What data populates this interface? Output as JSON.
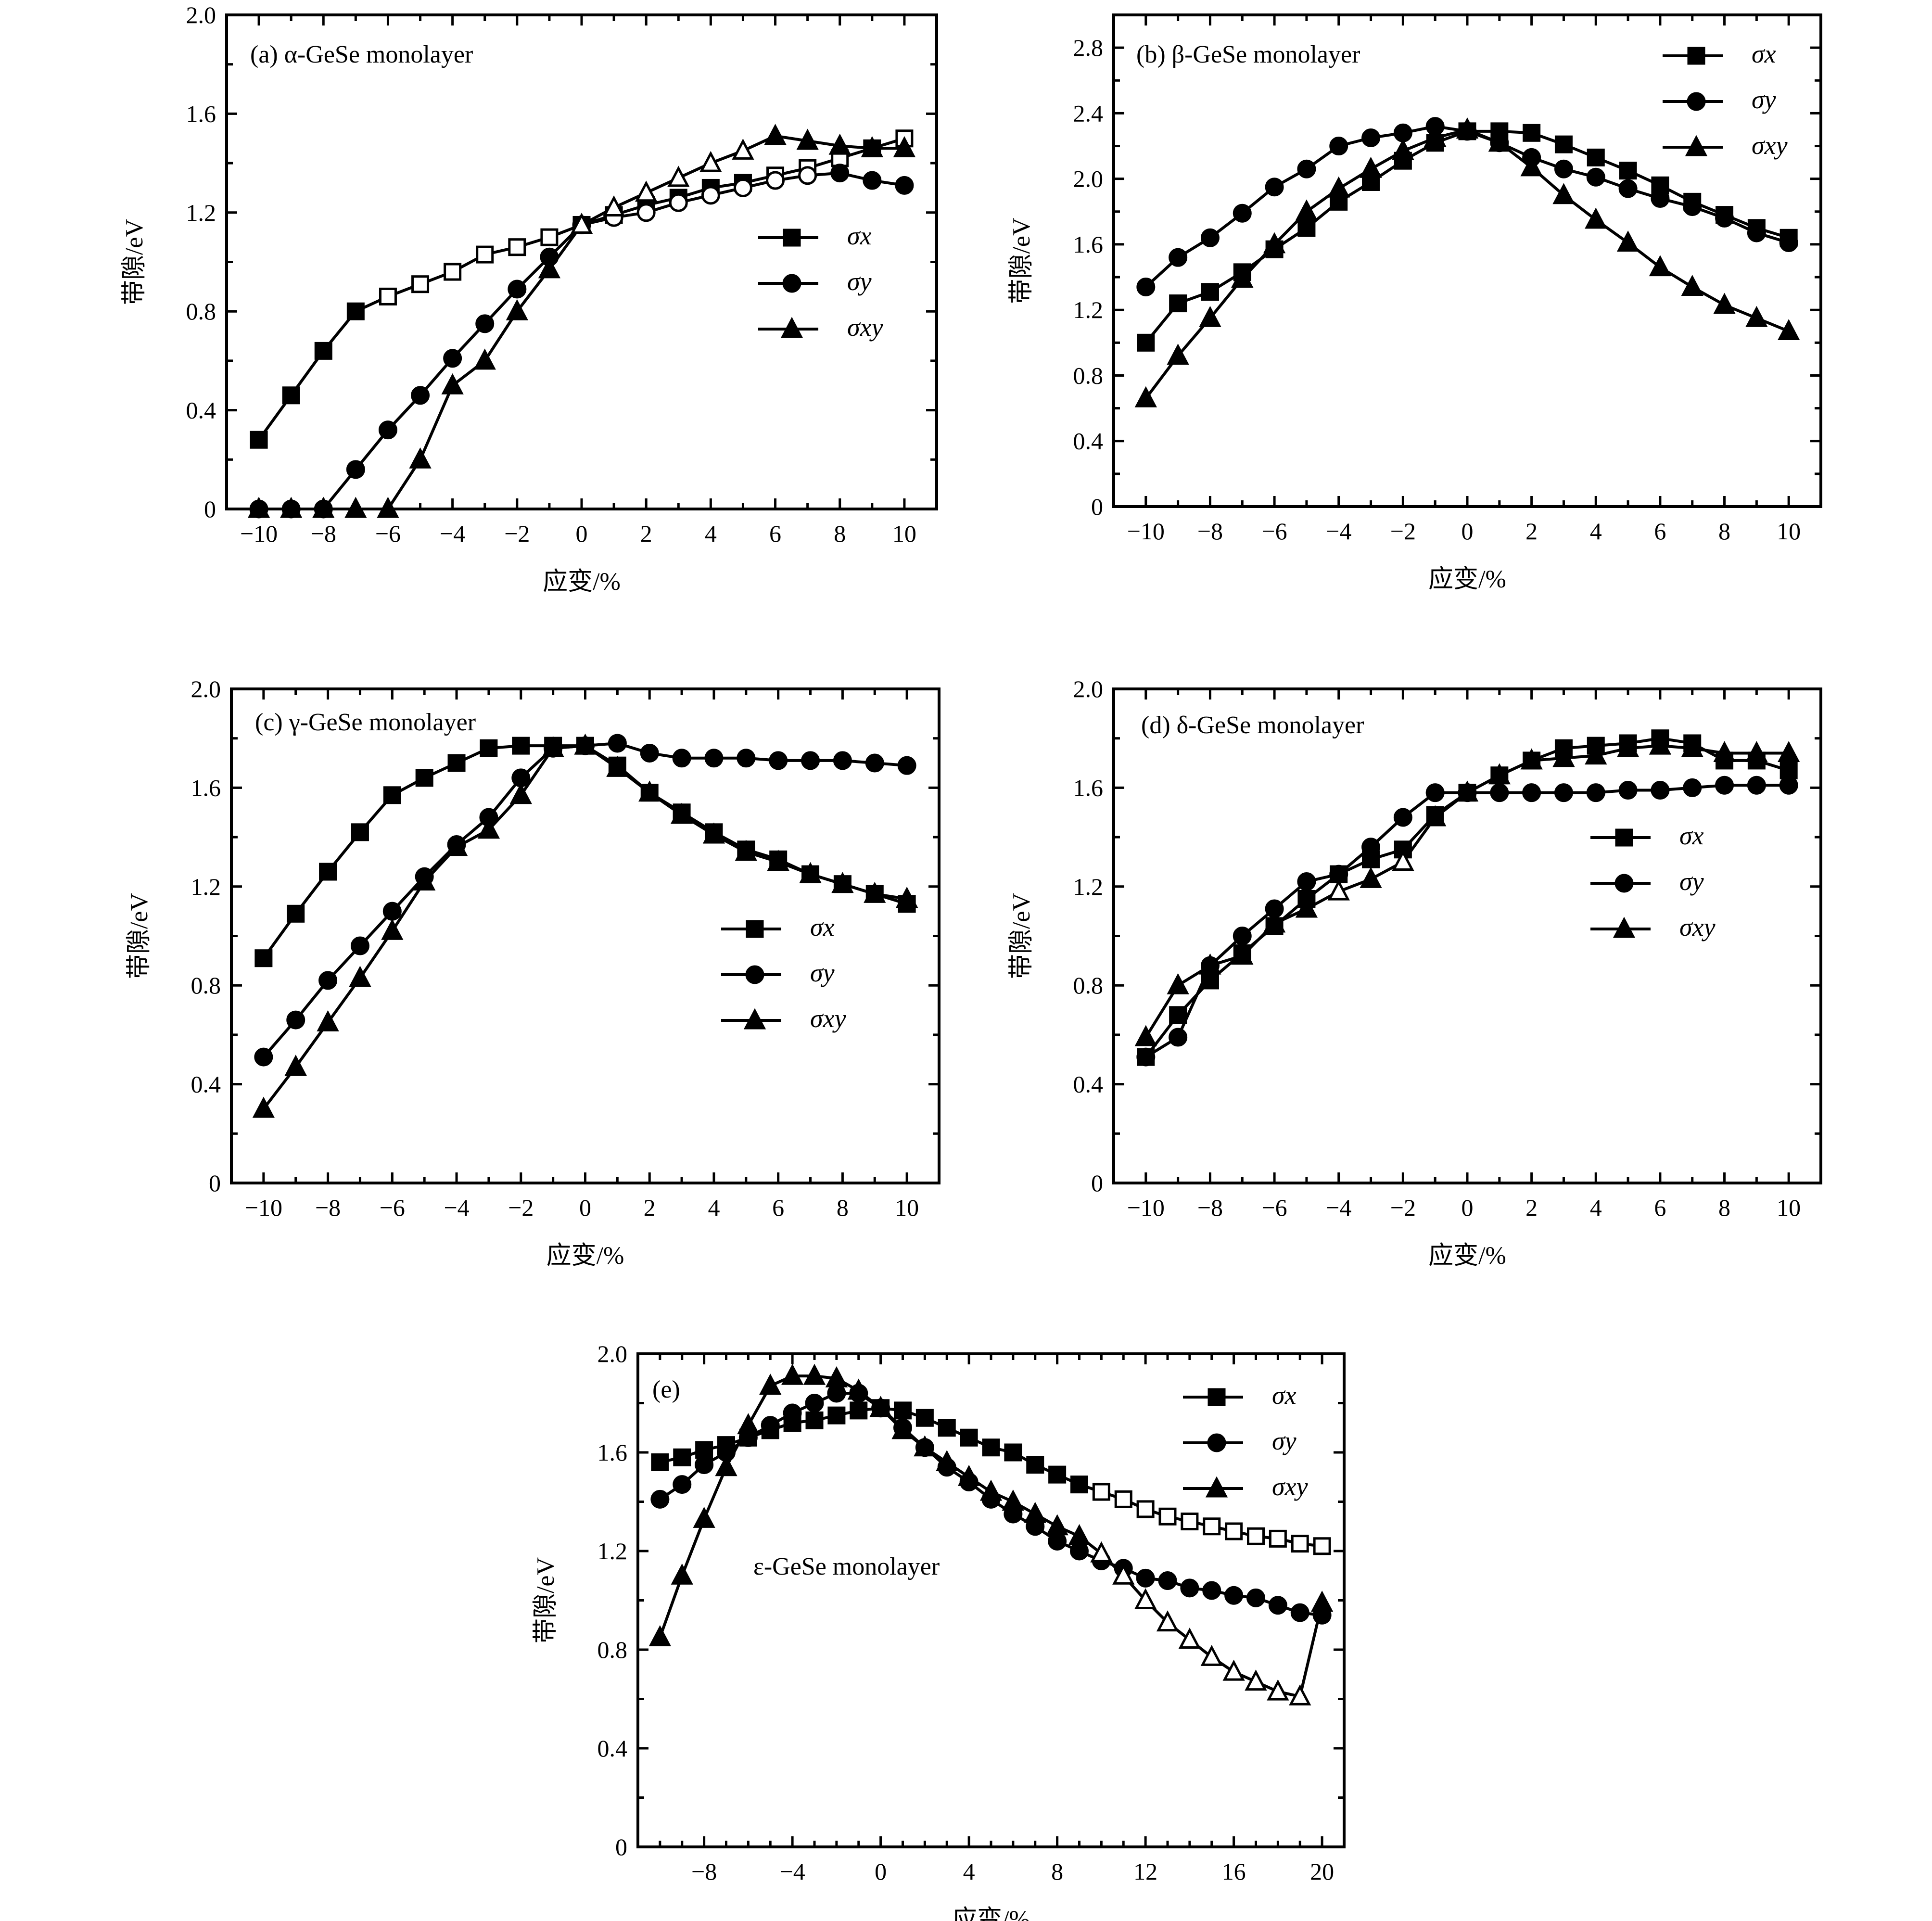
{
  "chart_data": [
    {
      "type": "line",
      "title": "(a) α-GeSe monolayer",
      "xlabel": "应变/%",
      "ylabel": "带隙/eV",
      "xlim": [
        -11,
        11
      ],
      "ylim": [
        0,
        2.0
      ],
      "xticks": [
        -10,
        -8,
        -6,
        -4,
        -2,
        0,
        2,
        4,
        6,
        8,
        10
      ],
      "xtick_labels": [
        "−10",
        "−8",
        "−6",
        "−4",
        "−2",
        "0",
        "2",
        "4",
        "6",
        "8",
        "10"
      ],
      "yticks": [
        0,
        0.4,
        0.8,
        1.2,
        1.6,
        2.0
      ],
      "ytick_labels": [
        "0",
        "0.4",
        "0.8",
        "1.2",
        "1.6",
        "2.0"
      ],
      "legend_position": "right",
      "grid": false,
      "x": [
        -10,
        -9,
        -8,
        -7,
        -6,
        -5,
        -4,
        -3,
        -2,
        -1,
        0,
        1,
        2,
        3,
        4,
        5,
        6,
        7,
        8,
        9,
        10
      ],
      "series": [
        {
          "name": "σx",
          "marker": "square",
          "values": [
            0.28,
            0.46,
            0.64,
            0.8,
            0.86,
            0.91,
            0.96,
            1.03,
            1.06,
            1.1,
            1.15,
            1.19,
            1.23,
            1.26,
            1.3,
            1.32,
            1.35,
            1.38,
            1.42,
            1.46,
            1.5
          ],
          "hollow_x": [
            -6,
            -5,
            -4,
            -3,
            -2,
            -1,
            6,
            7,
            8,
            10
          ]
        },
        {
          "name": "σy",
          "marker": "circle",
          "values": [
            0,
            0,
            0,
            0.16,
            0.32,
            0.46,
            0.61,
            0.75,
            0.89,
            1.02,
            1.15,
            1.18,
            1.2,
            1.24,
            1.27,
            1.3,
            1.33,
            1.35,
            1.36,
            1.33,
            1.31
          ],
          "hollow_x": [
            1,
            2,
            3,
            4,
            5,
            6,
            7
          ]
        },
        {
          "name": "σxy",
          "marker": "triangle",
          "values": [
            0,
            0,
            0,
            0,
            0,
            0.2,
            0.5,
            0.6,
            0.8,
            0.97,
            1.15,
            1.22,
            1.28,
            1.34,
            1.4,
            1.45,
            1.51,
            1.49,
            1.47,
            1.46,
            1.46
          ],
          "hollow_x": [
            0,
            1,
            2,
            3,
            4,
            5
          ]
        }
      ]
    },
    {
      "type": "line",
      "title": "(b) β-GeSe monolayer",
      "xlabel": "应变/%",
      "ylabel": "带隙/eV",
      "xlim": [
        -11,
        11
      ],
      "ylim": [
        0,
        3.0
      ],
      "xticks": [
        -10,
        -8,
        -6,
        -4,
        -2,
        0,
        2,
        4,
        6,
        8,
        10
      ],
      "xtick_labels": [
        "−10",
        "−8",
        "−6",
        "−4",
        "−2",
        "0",
        "2",
        "4",
        "6",
        "8",
        "10"
      ],
      "yticks": [
        0,
        0.4,
        0.8,
        1.2,
        1.6,
        2.0,
        2.4,
        2.8
      ],
      "ytick_labels": [
        "0",
        "0.4",
        "0.8",
        "1.2",
        "1.6",
        "2.0",
        "2.4",
        "2.8"
      ],
      "legend_position": "top-right",
      "grid": false,
      "x": [
        -10,
        -9,
        -8,
        -7,
        -6,
        -5,
        -4,
        -3,
        -2,
        -1,
        0,
        1,
        2,
        3,
        4,
        5,
        6,
        7,
        8,
        9,
        10
      ],
      "series": [
        {
          "name": "σx",
          "marker": "square",
          "values": [
            1.0,
            1.24,
            1.31,
            1.43,
            1.57,
            1.7,
            1.86,
            1.98,
            2.11,
            2.22,
            2.29,
            2.29,
            2.28,
            2.21,
            2.13,
            2.05,
            1.96,
            1.86,
            1.78,
            1.7,
            1.64
          ],
          "hollow_x": []
        },
        {
          "name": "σy",
          "marker": "circle",
          "values": [
            1.34,
            1.52,
            1.64,
            1.79,
            1.95,
            2.06,
            2.2,
            2.25,
            2.28,
            2.32,
            2.29,
            2.22,
            2.13,
            2.06,
            2.01,
            1.94,
            1.88,
            1.83,
            1.76,
            1.67,
            1.61
          ],
          "hollow_x": []
        },
        {
          "name": "σxy",
          "marker": "triangle",
          "values": [
            0.66,
            0.92,
            1.15,
            1.39,
            1.6,
            1.8,
            1.94,
            2.06,
            2.17,
            2.25,
            2.3,
            2.22,
            2.07,
            1.9,
            1.75,
            1.61,
            1.46,
            1.34,
            1.23,
            1.15,
            1.07
          ],
          "hollow_x": []
        }
      ]
    },
    {
      "type": "line",
      "title": "(c) γ-GeSe monolayer",
      "xlabel": "应变/%",
      "ylabel": "带隙/eV",
      "xlim": [
        -11,
        11
      ],
      "ylim": [
        0,
        2.0
      ],
      "xticks": [
        -10,
        -8,
        -6,
        -4,
        -2,
        0,
        2,
        4,
        6,
        8,
        10
      ],
      "xtick_labels": [
        "−10",
        "−8",
        "−6",
        "−4",
        "−2",
        "0",
        "2",
        "4",
        "6",
        "8",
        "10"
      ],
      "yticks": [
        0,
        0.4,
        0.8,
        1.2,
        1.6,
        2.0
      ],
      "ytick_labels": [
        "0",
        "0.4",
        "0.8",
        "1.2",
        "1.6",
        "2.0"
      ],
      "legend_position": "right",
      "grid": false,
      "x": [
        -10,
        -9,
        -8,
        -7,
        -6,
        -5,
        -4,
        -3,
        -2,
        -1,
        0,
        1,
        2,
        3,
        4,
        5,
        6,
        7,
        8,
        9,
        10
      ],
      "series": [
        {
          "name": "σx",
          "marker": "square",
          "values": [
            0.91,
            1.09,
            1.26,
            1.42,
            1.57,
            1.64,
            1.7,
            1.76,
            1.77,
            1.77,
            1.77,
            1.69,
            1.58,
            1.5,
            1.42,
            1.35,
            1.31,
            1.25,
            1.21,
            1.17,
            1.13
          ],
          "hollow_x": []
        },
        {
          "name": "σy",
          "marker": "circle",
          "values": [
            0.51,
            0.66,
            0.82,
            0.96,
            1.1,
            1.24,
            1.37,
            1.48,
            1.64,
            1.76,
            1.77,
            1.78,
            1.74,
            1.72,
            1.72,
            1.72,
            1.71,
            1.71,
            1.71,
            1.7,
            1.69
          ],
          "hollow_x": []
        },
        {
          "name": "σxy",
          "marker": "triangle",
          "values": [
            0.3,
            0.47,
            0.65,
            0.83,
            1.02,
            1.22,
            1.36,
            1.43,
            1.57,
            1.76,
            1.77,
            1.68,
            1.58,
            1.49,
            1.41,
            1.34,
            1.3,
            1.25,
            1.21,
            1.17,
            1.15
          ],
          "hollow_x": []
        }
      ]
    },
    {
      "type": "line",
      "title": "(d) δ-GeSe monolayer",
      "xlabel": "应变/%",
      "ylabel": "带隙/eV",
      "xlim": [
        -11,
        11
      ],
      "ylim": [
        0,
        2.0
      ],
      "xticks": [
        -10,
        -8,
        -6,
        -4,
        -2,
        0,
        2,
        4,
        6,
        8,
        10
      ],
      "xtick_labels": [
        "−10",
        "−8",
        "−6",
        "−4",
        "−2",
        "0",
        "2",
        "4",
        "6",
        "8",
        "10"
      ],
      "yticks": [
        0,
        0.4,
        0.8,
        1.2,
        1.6,
        2.0
      ],
      "ytick_labels": [
        "0",
        "0.4",
        "0.8",
        "1.2",
        "1.6",
        "2.0"
      ],
      "legend_position": "right",
      "grid": false,
      "x": [
        -10,
        -9,
        -8,
        -7,
        -6,
        -5,
        -4,
        -3,
        -2,
        -1,
        0,
        1,
        2,
        3,
        4,
        5,
        6,
        7,
        8,
        9,
        10
      ],
      "series": [
        {
          "name": "σx",
          "marker": "square",
          "values": [
            0.51,
            0.68,
            0.82,
            0.93,
            1.04,
            1.15,
            1.25,
            1.31,
            1.35,
            1.49,
            1.58,
            1.65,
            1.71,
            1.76,
            1.77,
            1.78,
            1.8,
            1.78,
            1.71,
            1.71,
            1.67
          ],
          "hollow_x": []
        },
        {
          "name": "σy",
          "marker": "circle",
          "values": [
            0.51,
            0.59,
            0.88,
            1.0,
            1.11,
            1.22,
            1.25,
            1.36,
            1.48,
            1.58,
            1.58,
            1.58,
            1.58,
            1.58,
            1.58,
            1.59,
            1.59,
            1.6,
            1.61,
            1.61,
            1.61
          ],
          "hollow_x": []
        },
        {
          "name": "σxy",
          "marker": "triangle",
          "values": [
            0.59,
            0.8,
            0.88,
            0.92,
            1.05,
            1.11,
            1.18,
            1.23,
            1.3,
            1.48,
            1.58,
            1.65,
            1.71,
            1.72,
            1.73,
            1.76,
            1.77,
            1.76,
            1.74,
            1.74,
            1.74
          ],
          "hollow_x": [
            -4,
            -2
          ]
        }
      ]
    },
    {
      "type": "line",
      "title": "(e)",
      "annotation": "ε-GeSe monolayer",
      "xlabel": "应变/%",
      "ylabel": "带隙/eV",
      "xlim": [
        -11,
        21
      ],
      "ylim": [
        0,
        2.0
      ],
      "xticks": [
        -8,
        -4,
        0,
        4,
        8,
        12,
        16,
        20
      ],
      "xtick_labels": [
        "−8",
        "−4",
        "0",
        "4",
        "8",
        "12",
        "16",
        "20"
      ],
      "yticks": [
        0,
        0.4,
        0.8,
        1.2,
        1.6,
        2.0
      ],
      "ytick_labels": [
        "0",
        "0.4",
        "0.8",
        "1.2",
        "1.6",
        "2.0"
      ],
      "legend_position": "top-right",
      "grid": false,
      "x": [
        -10,
        -9,
        -8,
        -7,
        -6,
        -5,
        -4,
        -3,
        -2,
        -1,
        0,
        1,
        2,
        3,
        4,
        5,
        6,
        7,
        8,
        9,
        10,
        11,
        12,
        13,
        14,
        15,
        16,
        17,
        18,
        19,
        20
      ],
      "series": [
        {
          "name": "σx",
          "marker": "square",
          "values": [
            1.56,
            1.58,
            1.61,
            1.63,
            1.66,
            1.69,
            1.72,
            1.73,
            1.75,
            1.77,
            1.78,
            1.77,
            1.74,
            1.7,
            1.66,
            1.62,
            1.6,
            1.55,
            1.51,
            1.47,
            1.44,
            1.41,
            1.37,
            1.34,
            1.32,
            1.3,
            1.28,
            1.26,
            1.25,
            1.23,
            1.22
          ],
          "hollow_x": [
            10,
            11,
            12,
            13,
            14,
            15,
            16,
            17,
            18,
            19,
            20
          ]
        },
        {
          "name": "σy",
          "marker": "circle",
          "values": [
            1.41,
            1.47,
            1.55,
            1.6,
            1.66,
            1.71,
            1.76,
            1.8,
            1.84,
            1.84,
            1.78,
            1.7,
            1.62,
            1.54,
            1.48,
            1.41,
            1.35,
            1.3,
            1.24,
            1.2,
            1.16,
            1.13,
            1.09,
            1.08,
            1.05,
            1.04,
            1.02,
            1.01,
            0.98,
            0.95,
            0.94
          ],
          "hollow_x": []
        },
        {
          "name": "σxy",
          "marker": "triangle",
          "values": [
            0.85,
            1.1,
            1.33,
            1.54,
            1.71,
            1.87,
            1.91,
            1.91,
            1.9,
            1.85,
            1.78,
            1.69,
            1.62,
            1.56,
            1.5,
            1.44,
            1.4,
            1.35,
            1.3,
            1.26,
            1.19,
            1.1,
            1.0,
            0.91,
            0.84,
            0.77,
            0.71,
            0.67,
            0.63,
            0.61,
            0.99
          ],
          "hollow_x": [
            10,
            11,
            12,
            13,
            14,
            15,
            16,
            17,
            18,
            19
          ]
        }
      ]
    }
  ]
}
